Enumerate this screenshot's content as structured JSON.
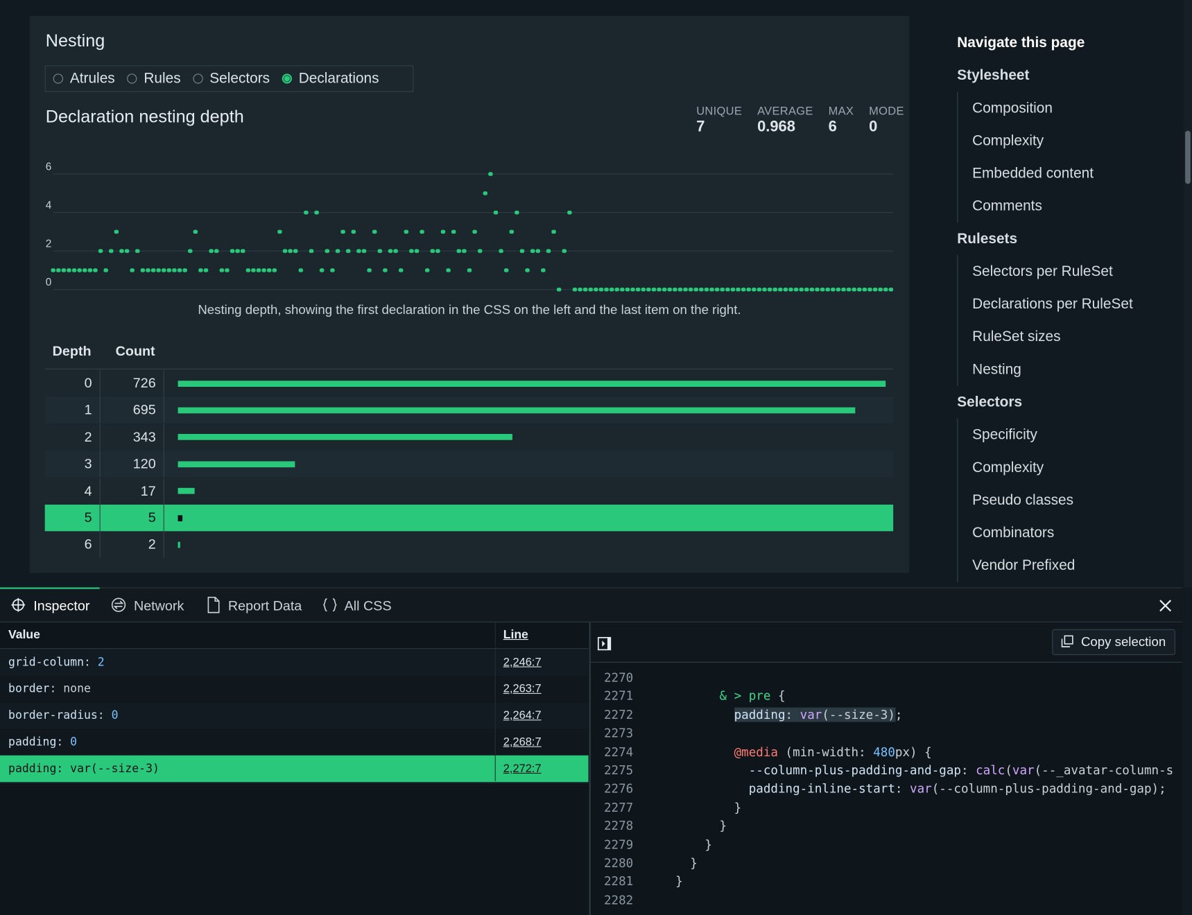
{
  "nesting": {
    "title": "Nesting",
    "options": [
      "Atrules",
      "Rules",
      "Selectors",
      "Declarations"
    ],
    "selected": 3,
    "subtitle": "Declaration nesting depth",
    "stats": [
      {
        "label": "UNIQUE",
        "value": 7
      },
      {
        "label": "AVERAGE",
        "value": 0.968
      },
      {
        "label": "MAX",
        "value": 6
      },
      {
        "label": "MODE",
        "value": 0
      }
    ],
    "table": {
      "headers": [
        "Depth",
        "Count"
      ],
      "rows": [
        [
          0,
          726
        ],
        [
          1,
          695
        ],
        [
          2,
          343
        ],
        [
          3,
          120
        ],
        [
          4,
          17
        ],
        [
          5,
          5
        ],
        [
          6,
          2
        ]
      ],
      "highlighted_row": 5,
      "color": "#2ac87a"
    }
  },
  "chart_data": {
    "type": "scatter",
    "caption": "Nesting depth, showing the first declaration in the CSS on the left and the last item on the right.",
    "values": [
      1,
      1,
      1,
      1,
      1,
      1,
      1,
      1,
      1,
      2,
      1,
      2,
      3,
      2,
      2,
      1,
      2,
      1,
      1,
      1,
      1,
      1,
      1,
      1,
      1,
      1,
      2,
      3,
      1,
      1,
      2,
      2,
      1,
      1,
      2,
      2,
      2,
      1,
      1,
      1,
      1,
      1,
      1,
      3,
      2,
      2,
      2,
      1,
      4,
      2,
      4,
      1,
      2,
      1,
      2,
      3,
      2,
      3,
      2,
      2,
      1,
      3,
      2,
      1,
      2,
      2,
      1,
      3,
      2,
      2,
      3,
      1,
      2,
      2,
      3,
      1,
      3,
      2,
      2,
      1,
      3,
      2,
      5,
      6,
      4,
      2,
      1,
      3,
      4,
      2,
      1,
      2,
      2,
      1,
      2,
      3,
      0,
      2,
      4,
      0,
      0,
      0,
      0,
      0,
      0,
      0,
      0,
      0,
      0,
      0,
      0,
      0,
      0,
      0,
      0,
      0,
      0,
      0,
      0,
      0,
      0,
      0,
      0,
      0,
      0,
      0,
      0,
      0,
      0,
      0,
      0,
      0,
      0,
      0,
      0,
      0,
      0,
      0,
      0,
      0,
      0,
      0,
      0,
      0,
      0,
      0,
      0,
      0,
      0,
      0,
      0,
      0,
      0,
      0,
      0,
      0,
      0,
      0,
      0,
      0
    ],
    "ylim": [
      0,
      6
    ],
    "yticks": [
      0,
      2,
      4,
      6
    ],
    "grid": true,
    "color": "#2ac87a"
  },
  "navigation": {
    "title": "Navigate this page",
    "groups": [
      {
        "heading": "Stylesheet",
        "items": [
          "Composition",
          "Complexity",
          "Embedded content",
          "Comments"
        ]
      },
      {
        "heading": "Rulesets",
        "items": [
          "Selectors per RuleSet",
          "Declarations per RuleSet",
          "RuleSet sizes",
          "Nesting"
        ]
      },
      {
        "heading": "Selectors",
        "items": [
          "Specificity",
          "Complexity",
          "Pseudo classes",
          "Combinators",
          "Vendor Prefixed"
        ]
      }
    ]
  },
  "devtools": {
    "tabs": [
      "Inspector",
      "Network",
      "Report Data",
      "All CSS"
    ],
    "active_tab": 0,
    "table": {
      "headers": [
        "Value",
        "Line"
      ],
      "highlighted_row": 4,
      "rows": [
        {
          "value": [
            {
              "text": "grid-column",
              "color": "#cfe3f5"
            },
            {
              "text": ": ",
              "color": "#c9d1d9"
            },
            {
              "text": "2",
              "color": "#79c0ff"
            }
          ],
          "line": "2,246:7"
        },
        {
          "value": [
            {
              "text": "border",
              "color": "#cfe3f5"
            },
            {
              "text": ": none",
              "color": "#c9d1d9"
            }
          ],
          "line": "2,263:7"
        },
        {
          "value": [
            {
              "text": "border-radius",
              "color": "#cfe3f5"
            },
            {
              "text": ": ",
              "color": "#c9d1d9"
            },
            {
              "text": "0",
              "color": "#79c0ff"
            }
          ],
          "line": "2,264:7"
        },
        {
          "value": [
            {
              "text": "padding",
              "color": "#cfe3f5"
            },
            {
              "text": ": ",
              "color": "#c9d1d9"
            },
            {
              "text": "0",
              "color": "#79c0ff"
            }
          ],
          "line": "2,268:7"
        },
        {
          "value": [
            {
              "text": "padding: var(--size-3)",
              "color": "#0d1117"
            }
          ],
          "line": "2,272:7"
        }
      ]
    },
    "copy_button": "Copy selection",
    "code": [
      {
        "number": 2270,
        "segments": []
      },
      {
        "number": 2271,
        "segments": [
          {
            "text": "          & > pre",
            "color": "#3fd68a"
          },
          {
            "text": " {",
            "color": "#c9d1d9"
          }
        ]
      },
      {
        "number": 2272,
        "segments": [
          {
            "text": "            ",
            "color": "#c9d1d9"
          },
          {
            "text": "padding",
            "color": "#cfe3f5",
            "highlight": true
          },
          {
            "text": ": ",
            "color": "#c9d1d9",
            "highlight": true
          },
          {
            "text": "var",
            "color": "#d2a8ff",
            "highlight": true
          },
          {
            "text": "(--size-3)",
            "color": "#c9d1d9",
            "highlight": true
          },
          {
            "text": ";",
            "color": "#c9d1d9"
          }
        ]
      },
      {
        "number": 2273,
        "segments": []
      },
      {
        "number": 2274,
        "segments": [
          {
            "text": "            ",
            "color": "#c9d1d9"
          },
          {
            "text": "@media",
            "color": "#ff7b72"
          },
          {
            "text": " (min-width: ",
            "color": "#c9d1d9"
          },
          {
            "text": "480",
            "color": "#79c0ff"
          },
          {
            "text": "px) {",
            "color": "#c9d1d9"
          }
        ]
      },
      {
        "number": 2275,
        "segments": [
          {
            "text": "              --column-plus-padding-and-gap",
            "color": "#cfe3f5"
          },
          {
            "text": ": ",
            "color": "#c9d1d9"
          },
          {
            "text": "calc",
            "color": "#d2a8ff"
          },
          {
            "text": "(",
            "color": "#c9d1d9"
          },
          {
            "text": "var",
            "color": "#d2a8ff"
          },
          {
            "text": "(--_avatar-column-s",
            "color": "#c9d1d9"
          }
        ]
      },
      {
        "number": 2276,
        "segments": [
          {
            "text": "              padding-inline-start",
            "color": "#cfe3f5"
          },
          {
            "text": ": ",
            "color": "#c9d1d9"
          },
          {
            "text": "var",
            "color": "#d2a8ff"
          },
          {
            "text": "(--column-plus-padding-and-gap);",
            "color": "#c9d1d9"
          }
        ]
      },
      {
        "number": 2277,
        "segments": [
          {
            "text": "            }",
            "color": "#c9d1d9"
          }
        ]
      },
      {
        "number": 2278,
        "segments": [
          {
            "text": "          }",
            "color": "#c9d1d9"
          }
        ]
      },
      {
        "number": 2279,
        "segments": [
          {
            "text": "        }",
            "color": "#c9d1d9"
          }
        ]
      },
      {
        "number": 2280,
        "segments": [
          {
            "text": "      }",
            "color": "#c9d1d9"
          }
        ]
      },
      {
        "number": 2281,
        "segments": [
          {
            "text": "    }",
            "color": "#c9d1d9"
          }
        ]
      },
      {
        "number": 2282,
        "segments": []
      }
    ]
  }
}
